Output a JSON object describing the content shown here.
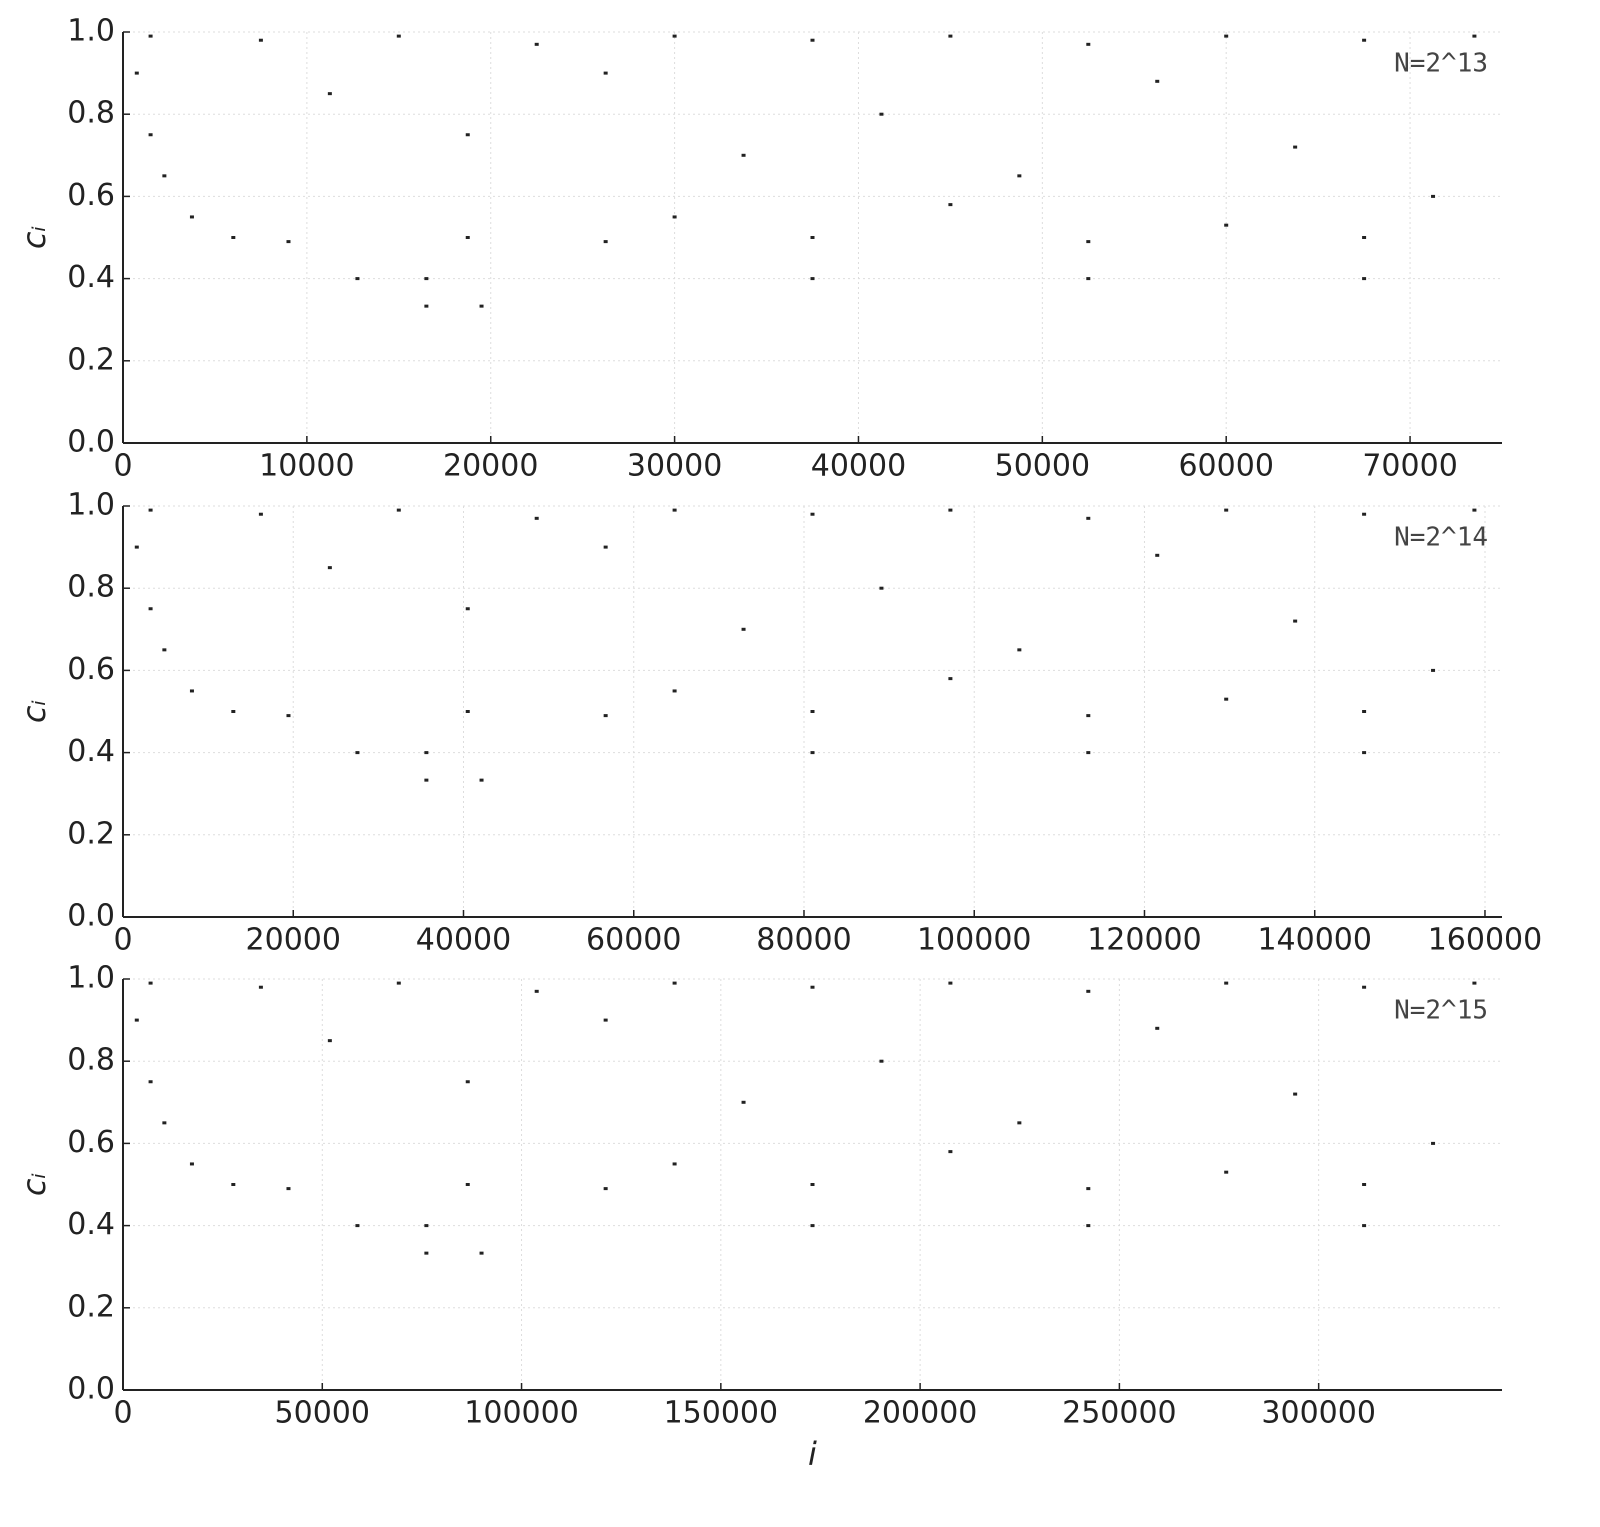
{
  "chart_data": [
    {
      "type": "scatter",
      "annotation": "N=2^13",
      "y_label": "cᵢ",
      "color": "#222222",
      "grid": true,
      "xlim": [
        0,
        75000
      ],
      "ylim": [
        0,
        1
      ],
      "xticks": [
        0,
        10000,
        20000,
        30000,
        40000,
        50000,
        60000,
        70000
      ],
      "yticks": [
        {
          "value": 0,
          "label": "0.0"
        },
        0.2,
        0.4,
        0.6,
        0.8,
        {
          "value": 1,
          "label": "1.0"
        }
      ],
      "x": [
        1500,
        7500,
        15000,
        22500,
        30000,
        37500,
        45000,
        52500,
        60000,
        67500,
        73500,
        11250,
        18750,
        26250,
        33750,
        41250,
        48750,
        56250,
        63750,
        71250,
        30000,
        45000,
        60000,
        750,
        1500,
        2250,
        3750,
        6000,
        9000,
        18750,
        26250,
        37500,
        52500,
        67500,
        12750,
        16500,
        37500,
        52500,
        67500,
        16500,
        19500
      ],
      "values": [
        0.99,
        0.98,
        0.99,
        0.97,
        0.99,
        0.98,
        0.99,
        0.97,
        0.99,
        0.98,
        0.99,
        0.85,
        0.75,
        0.9,
        0.7,
        0.8,
        0.65,
        0.88,
        0.72,
        0.6,
        0.55,
        0.58,
        0.53,
        0.9,
        0.75,
        0.65,
        0.55,
        0.5,
        0.49,
        0.5,
        0.49,
        0.5,
        0.49,
        0.5,
        0.4,
        0.4,
        0.4,
        0.4,
        0.4,
        0.333,
        0.333
      ]
    },
    {
      "type": "scatter",
      "annotation": "N=2^14",
      "y_label": "cᵢ",
      "color": "#222222",
      "grid": true,
      "xlim": [
        0,
        162000
      ],
      "ylim": [
        0,
        1
      ],
      "xticks": [
        0,
        20000,
        40000,
        60000,
        80000,
        100000,
        120000,
        140000,
        160000
      ],
      "yticks": [
        {
          "value": 0,
          "label": "0.0"
        },
        0.2,
        0.4,
        0.6,
        0.8,
        {
          "value": 1,
          "label": "1.0"
        }
      ],
      "x": [
        3240,
        16200,
        32400,
        48600,
        64800,
        81000,
        97200,
        113400,
        129600,
        145800,
        158760,
        24300,
        40500,
        56700,
        72900,
        89100,
        105300,
        121500,
        137700,
        153900,
        64800,
        97200,
        129600,
        1620,
        3240,
        4860,
        8100,
        12960,
        19440,
        40500,
        56700,
        81000,
        113400,
        145800,
        27540,
        35640,
        81000,
        113400,
        145800,
        35640,
        42120
      ],
      "values": [
        0.99,
        0.98,
        0.99,
        0.97,
        0.99,
        0.98,
        0.99,
        0.97,
        0.99,
        0.98,
        0.99,
        0.85,
        0.75,
        0.9,
        0.7,
        0.8,
        0.65,
        0.88,
        0.72,
        0.6,
        0.55,
        0.58,
        0.53,
        0.9,
        0.75,
        0.65,
        0.55,
        0.5,
        0.49,
        0.5,
        0.49,
        0.5,
        0.49,
        0.5,
        0.4,
        0.4,
        0.4,
        0.4,
        0.4,
        0.333,
        0.333
      ]
    },
    {
      "type": "scatter",
      "annotation": "N=2^15",
      "y_label": "cᵢ",
      "x_label": "i",
      "color": "#222222",
      "grid": true,
      "xlim": [
        0,
        346000
      ],
      "ylim": [
        0,
        1
      ],
      "xticks": [
        0,
        50000,
        100000,
        150000,
        200000,
        250000,
        300000
      ],
      "yticks": [
        {
          "value": 0,
          "label": "0.0"
        },
        0.2,
        0.4,
        0.6,
        0.8,
        {
          "value": 1,
          "label": "1.0"
        }
      ],
      "x": [
        6920,
        34600,
        69200,
        103800,
        138400,
        173000,
        207600,
        242200,
        276800,
        311400,
        339080,
        51900,
        86500,
        121100,
        155700,
        190300,
        224900,
        259500,
        294100,
        328700,
        138400,
        207600,
        276800,
        3460,
        6920,
        10380,
        17300,
        27680,
        41520,
        86500,
        121100,
        173000,
        242200,
        311400,
        58820,
        76120,
        173000,
        242200,
        311400,
        76120,
        89960
      ],
      "values": [
        0.99,
        0.98,
        0.99,
        0.97,
        0.99,
        0.98,
        0.99,
        0.97,
        0.99,
        0.98,
        0.99,
        0.85,
        0.75,
        0.9,
        0.7,
        0.8,
        0.65,
        0.88,
        0.72,
        0.6,
        0.55,
        0.58,
        0.53,
        0.9,
        0.75,
        0.65,
        0.55,
        0.5,
        0.49,
        0.5,
        0.49,
        0.5,
        0.49,
        0.5,
        0.4,
        0.4,
        0.4,
        0.4,
        0.4,
        0.333,
        0.333
      ]
    }
  ]
}
